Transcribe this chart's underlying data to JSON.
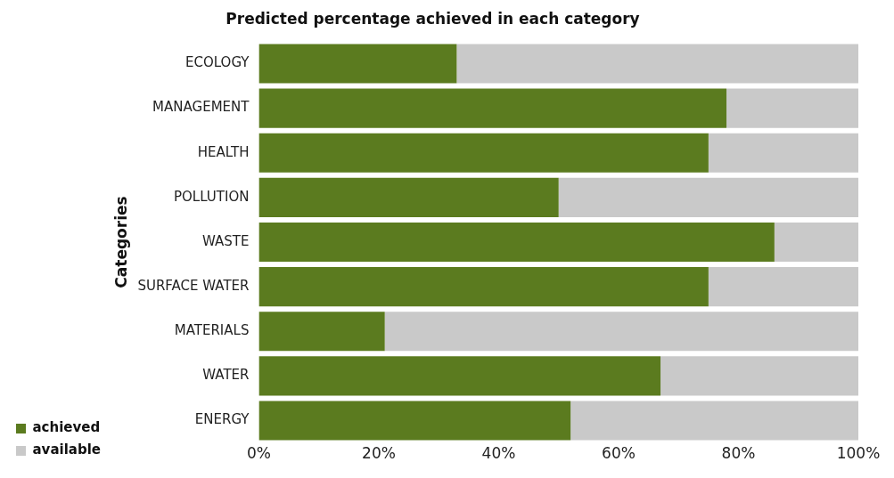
{
  "chart_data": {
    "type": "bar",
    "orientation": "horizontal",
    "stacked": true,
    "title": "Predicted percentage achieved in each category",
    "ylabel": "Categories",
    "categories": [
      "ECOLOGY",
      "MANAGEMENT",
      "HEALTH",
      "POLLUTION",
      "WASTE",
      "SURFACE WATER",
      "MATERIALS",
      "WATER",
      "ENERGY"
    ],
    "series": [
      {
        "name": "achieved",
        "color": "#5b7b1f",
        "values": [
          33,
          78,
          75,
          50,
          86,
          75,
          21,
          67,
          52
        ]
      },
      {
        "name": "available",
        "color": "#c9c9c9",
        "values": [
          67,
          22,
          25,
          50,
          14,
          25,
          79,
          33,
          48
        ]
      }
    ],
    "xlim": [
      0,
      100
    ],
    "xticks": [
      {
        "value": 0,
        "label": "0%"
      },
      {
        "value": 20,
        "label": "20%"
      },
      {
        "value": 40,
        "label": "40%"
      },
      {
        "value": 60,
        "label": "60%"
      },
      {
        "value": 80,
        "label": "80%"
      },
      {
        "value": 100,
        "label": "100%"
      }
    ],
    "grid": false,
    "legend": "bottom left"
  }
}
